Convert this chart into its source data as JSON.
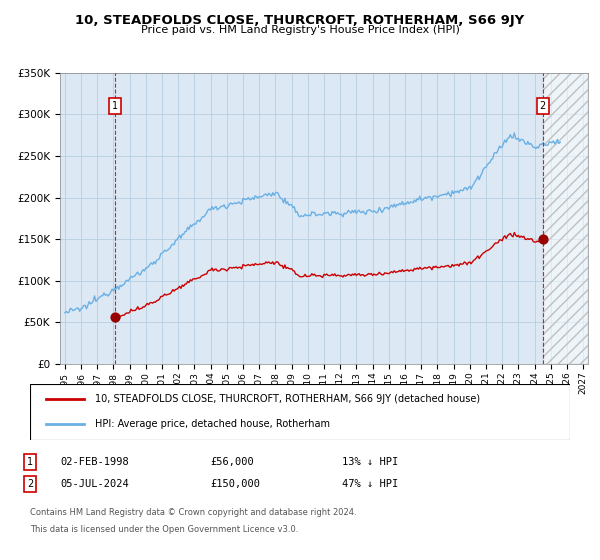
{
  "title": "10, STEADFOLDS CLOSE, THURCROFT, ROTHERHAM, S66 9JY",
  "subtitle": "Price paid vs. HM Land Registry's House Price Index (HPI)",
  "sale1_date": 1998.09,
  "sale1_price": 56000,
  "sale1_label": "1",
  "sale1_text": "02-FEB-1998",
  "sale2_date": 2024.51,
  "sale2_price": 150000,
  "sale2_label": "2",
  "sale2_text": "05-JUL-2024",
  "hpi_line_color": "#6ab0e4",
  "property_line_color": "#cc0000",
  "dot_color": "#990000",
  "sale_label_box_color": "#cc0000",
  "dashed_line_color": "#cc0000",
  "plot_bg_color": "#dce9f5",
  "grid_color": "#b8cfe0",
  "ylim": [
    0,
    350000
  ],
  "xlim_start": 1994.7,
  "xlim_end": 2027.3,
  "yticks": [
    0,
    50000,
    100000,
    150000,
    200000,
    250000,
    300000,
    350000
  ],
  "legend_entry1": "10, STEADFOLDS CLOSE, THURCROFT, ROTHERHAM, S66 9JY (detached house)",
  "legend_entry2": "HPI: Average price, detached house, Rotherham",
  "sale1_pct": "13%",
  "sale2_pct": "47%",
  "footnote1": "Contains HM Land Registry data © Crown copyright and database right 2024.",
  "footnote2": "This data is licensed under the Open Government Licence v3.0."
}
